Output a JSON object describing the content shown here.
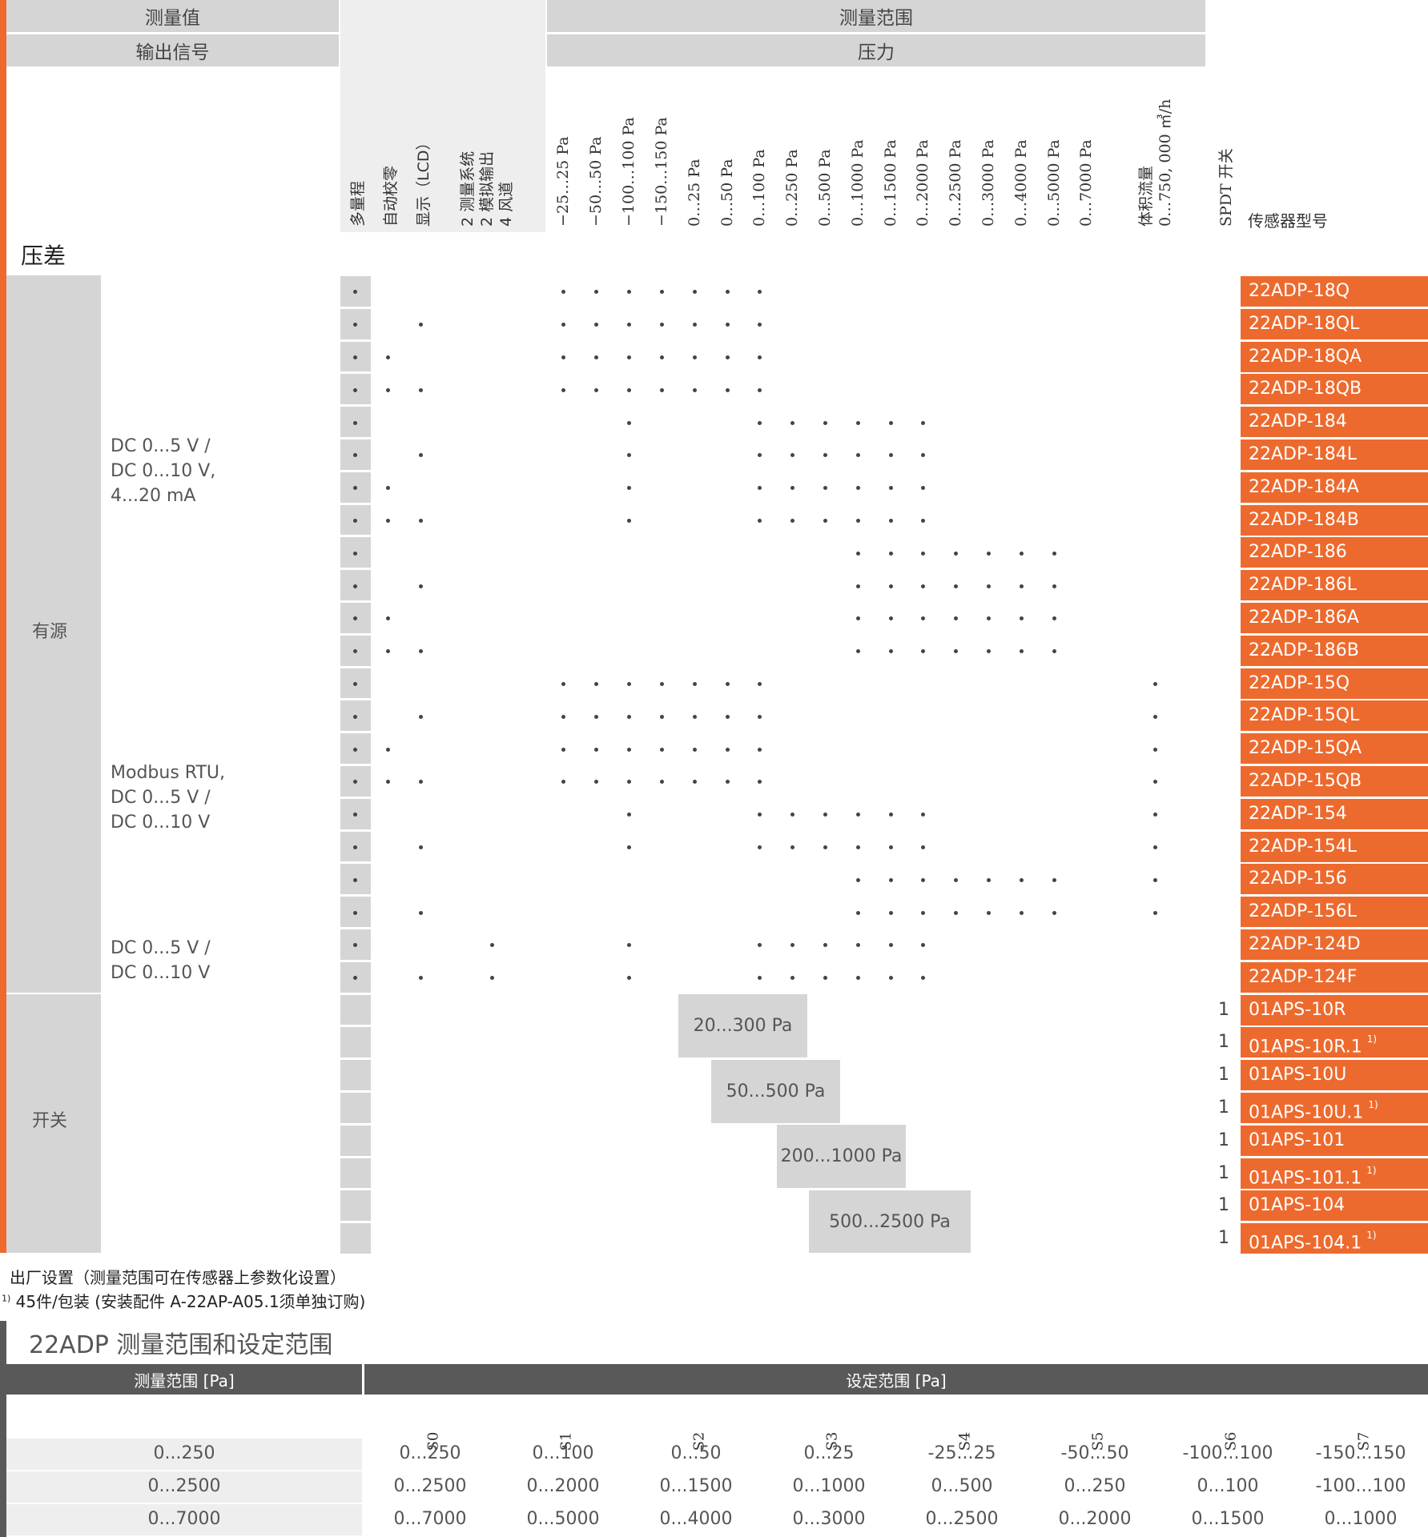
{
  "headers": {
    "measured_value": "测量值",
    "output_signal": "输出信号",
    "measuring_range": "测量范围",
    "pressure": "压力"
  },
  "feature_columns": [
    "多量程",
    "自动校零",
    "显示（LCD）",
    "2 测量系统\n2 模拟输出\n4 风道"
  ],
  "range_columns": [
    "−25…25 Pa",
    "−50…50 Pa",
    "−100…100 Pa",
    "−150…150 Pa",
    "0…25 Pa",
    "0…50 Pa",
    "0…100 Pa",
    "0…250 Pa",
    "0…500 Pa",
    "0…1000 Pa",
    "0…1500 Pa",
    "0…2000 Pa",
    "0…2500 Pa",
    "0…3000 Pa",
    "0…4000 Pa",
    "0…5000 Pa",
    "0…7000 Pa"
  ],
  "volume_flow_column": "体积流量\n0…750, 000 ㎥/h",
  "switch_column": "SPDT 开关",
  "model_column": "传感器型号",
  "section_title": "压差",
  "groups": {
    "active": "有源",
    "switch": "开关"
  },
  "output_labels": [
    {
      "lines": [
        "DC 0...5 V /",
        "DC 0...10 V,",
        "4...20 mA"
      ]
    },
    {
      "lines": [
        "Modbus RTU,",
        "DC 0...5 V /",
        "DC 0...10 V"
      ]
    },
    {
      "lines": [
        "DC 0...5 V /",
        "DC 0...10 V"
      ]
    }
  ],
  "rows": [
    {
      "model": "22ADP-18Q",
      "sup": "",
      "f": [
        1,
        0,
        0,
        0
      ],
      "r": [
        1,
        1,
        1,
        1,
        1,
        1,
        1,
        0,
        0,
        0,
        0,
        0,
        0,
        0,
        0,
        0,
        0
      ],
      "flow": 0
    },
    {
      "model": "22ADP-18QL",
      "sup": "",
      "f": [
        1,
        0,
        1,
        0
      ],
      "r": [
        1,
        1,
        1,
        1,
        1,
        1,
        1,
        0,
        0,
        0,
        0,
        0,
        0,
        0,
        0,
        0,
        0
      ],
      "flow": 0
    },
    {
      "model": "22ADP-18QA",
      "sup": "",
      "f": [
        1,
        1,
        0,
        0
      ],
      "r": [
        1,
        1,
        1,
        1,
        1,
        1,
        1,
        0,
        0,
        0,
        0,
        0,
        0,
        0,
        0,
        0,
        0
      ],
      "flow": 0
    },
    {
      "model": "22ADP-18QB",
      "sup": "",
      "f": [
        1,
        1,
        1,
        0
      ],
      "r": [
        1,
        1,
        1,
        1,
        1,
        1,
        1,
        0,
        0,
        0,
        0,
        0,
        0,
        0,
        0,
        0,
        0
      ],
      "flow": 0
    },
    {
      "model": "22ADP-184",
      "sup": "",
      "f": [
        1,
        0,
        0,
        0
      ],
      "r": [
        0,
        0,
        1,
        0,
        0,
        0,
        1,
        1,
        1,
        1,
        1,
        1,
        0,
        0,
        0,
        0,
        0
      ],
      "flow": 0
    },
    {
      "model": "22ADP-184L",
      "sup": "",
      "f": [
        1,
        0,
        1,
        0
      ],
      "r": [
        0,
        0,
        1,
        0,
        0,
        0,
        1,
        1,
        1,
        1,
        1,
        1,
        0,
        0,
        0,
        0,
        0
      ],
      "flow": 0
    },
    {
      "model": "22ADP-184A",
      "sup": "",
      "f": [
        1,
        1,
        0,
        0
      ],
      "r": [
        0,
        0,
        1,
        0,
        0,
        0,
        1,
        1,
        1,
        1,
        1,
        1,
        0,
        0,
        0,
        0,
        0
      ],
      "flow": 0
    },
    {
      "model": "22ADP-184B",
      "sup": "",
      "f": [
        1,
        1,
        1,
        0
      ],
      "r": [
        0,
        0,
        1,
        0,
        0,
        0,
        1,
        1,
        1,
        1,
        1,
        1,
        0,
        0,
        0,
        0,
        0
      ],
      "flow": 0
    },
    {
      "model": "22ADP-186",
      "sup": "",
      "f": [
        1,
        0,
        0,
        0
      ],
      "r": [
        0,
        0,
        0,
        0,
        0,
        0,
        0,
        0,
        0,
        1,
        1,
        1,
        1,
        1,
        1,
        1,
        0
      ],
      "flow": 0
    },
    {
      "model": "22ADP-186L",
      "sup": "",
      "f": [
        1,
        0,
        1,
        0
      ],
      "r": [
        0,
        0,
        0,
        0,
        0,
        0,
        0,
        0,
        0,
        1,
        1,
        1,
        1,
        1,
        1,
        1,
        0
      ],
      "flow": 0
    },
    {
      "model": "22ADP-186A",
      "sup": "",
      "f": [
        1,
        1,
        0,
        0
      ],
      "r": [
        0,
        0,
        0,
        0,
        0,
        0,
        0,
        0,
        0,
        1,
        1,
        1,
        1,
        1,
        1,
        1,
        0
      ],
      "flow": 0
    },
    {
      "model": "22ADP-186B",
      "sup": "",
      "f": [
        1,
        1,
        1,
        0
      ],
      "r": [
        0,
        0,
        0,
        0,
        0,
        0,
        0,
        0,
        0,
        1,
        1,
        1,
        1,
        1,
        1,
        1,
        0
      ],
      "flow": 0
    },
    {
      "model": "22ADP-15Q",
      "sup": "",
      "f": [
        1,
        0,
        0,
        0
      ],
      "r": [
        1,
        1,
        1,
        1,
        1,
        1,
        1,
        0,
        0,
        0,
        0,
        0,
        0,
        0,
        0,
        0,
        0
      ],
      "flow": 1
    },
    {
      "model": "22ADP-15QL",
      "sup": "",
      "f": [
        1,
        0,
        1,
        0
      ],
      "r": [
        1,
        1,
        1,
        1,
        1,
        1,
        1,
        0,
        0,
        0,
        0,
        0,
        0,
        0,
        0,
        0,
        0
      ],
      "flow": 1
    },
    {
      "model": "22ADP-15QA",
      "sup": "",
      "f": [
        1,
        1,
        0,
        0
      ],
      "r": [
        1,
        1,
        1,
        1,
        1,
        1,
        1,
        0,
        0,
        0,
        0,
        0,
        0,
        0,
        0,
        0,
        0
      ],
      "flow": 1
    },
    {
      "model": "22ADP-15QB",
      "sup": "",
      "f": [
        1,
        1,
        1,
        0
      ],
      "r": [
        1,
        1,
        1,
        1,
        1,
        1,
        1,
        0,
        0,
        0,
        0,
        0,
        0,
        0,
        0,
        0,
        0
      ],
      "flow": 1
    },
    {
      "model": "22ADP-154",
      "sup": "",
      "f": [
        1,
        0,
        0,
        0
      ],
      "r": [
        0,
        0,
        1,
        0,
        0,
        0,
        1,
        1,
        1,
        1,
        1,
        1,
        0,
        0,
        0,
        0,
        0
      ],
      "flow": 1
    },
    {
      "model": "22ADP-154L",
      "sup": "",
      "f": [
        1,
        0,
        1,
        0
      ],
      "r": [
        0,
        0,
        1,
        0,
        0,
        0,
        1,
        1,
        1,
        1,
        1,
        1,
        0,
        0,
        0,
        0,
        0
      ],
      "flow": 1
    },
    {
      "model": "22ADP-156",
      "sup": "",
      "f": [
        1,
        0,
        0,
        0
      ],
      "r": [
        0,
        0,
        0,
        0,
        0,
        0,
        0,
        0,
        0,
        1,
        1,
        1,
        1,
        1,
        1,
        1,
        0
      ],
      "flow": 1
    },
    {
      "model": "22ADP-156L",
      "sup": "",
      "f": [
        1,
        0,
        1,
        0
      ],
      "r": [
        0,
        0,
        0,
        0,
        0,
        0,
        0,
        0,
        0,
        1,
        1,
        1,
        1,
        1,
        1,
        1,
        0
      ],
      "flow": 1
    },
    {
      "model": "22ADP-124D",
      "sup": "",
      "f": [
        1,
        0,
        0,
        1
      ],
      "r": [
        0,
        0,
        1,
        0,
        0,
        0,
        1,
        1,
        1,
        1,
        1,
        1,
        0,
        0,
        0,
        0,
        0
      ],
      "flow": 0
    },
    {
      "model": "22ADP-124F",
      "sup": "",
      "f": [
        1,
        0,
        1,
        1
      ],
      "r": [
        0,
        0,
        1,
        0,
        0,
        0,
        1,
        1,
        1,
        1,
        1,
        1,
        0,
        0,
        0,
        0,
        0
      ],
      "flow": 0
    },
    {
      "model": "01APS-10R",
      "sup": "",
      "switch": "1"
    },
    {
      "model": "01APS-10R.1",
      "sup": "1)",
      "switch": "1"
    },
    {
      "model": "01APS-10U",
      "sup": "",
      "switch": "1"
    },
    {
      "model": "01APS-10U.1",
      "sup": "1)",
      "switch": "1"
    },
    {
      "model": "01APS-101",
      "sup": "",
      "switch": "1"
    },
    {
      "model": "01APS-101.1",
      "sup": "1)",
      "switch": "1"
    },
    {
      "model": "01APS-104",
      "sup": "",
      "switch": "1"
    },
    {
      "model": "01APS-104.1",
      "sup": "1)",
      "switch": "1"
    }
  ],
  "switch_ranges": [
    "20...300 Pa",
    "50...500 Pa",
    "200...1000 Pa",
    "500...2500 Pa"
  ],
  "footnotes": {
    "factory": "出厂设置（测量范围可在传感器上参数化设置）",
    "note1_mark": "1)",
    "note1": "45件/包装 (安装配件 A-22AP-A05.1须单独订购)"
  },
  "settings_table": {
    "title": "22ADP 测量范围和设定范围",
    "col_measuring": "测量范围 [Pa]",
    "col_setting": "设定范围 [Pa]",
    "s_labels": [
      "S0",
      "S1",
      "S2",
      "S3",
      "S4",
      "S5",
      "S6",
      "S7"
    ],
    "rows": [
      {
        "range": "0...250",
        "values": [
          "0...250",
          "0...100",
          "0...50",
          "0...25",
          "-25...25",
          "-50...50",
          "-100...100",
          "-150...150"
        ]
      },
      {
        "range": "0...2500",
        "values": [
          "0...2500",
          "0...2000",
          "0...1500",
          "0...1000",
          "0...500",
          "0...250",
          "0...100",
          "-100...100"
        ]
      },
      {
        "range": "0...7000",
        "values": [
          "0...7000",
          "0...5000",
          "0...4000",
          "0...3000",
          "0...2500",
          "0...2000",
          "0...1500",
          "0...1000"
        ]
      }
    ]
  },
  "colors": {
    "accent": "#ed6a2e",
    "gray": "#d5d5d5",
    "dark": "#595959"
  }
}
